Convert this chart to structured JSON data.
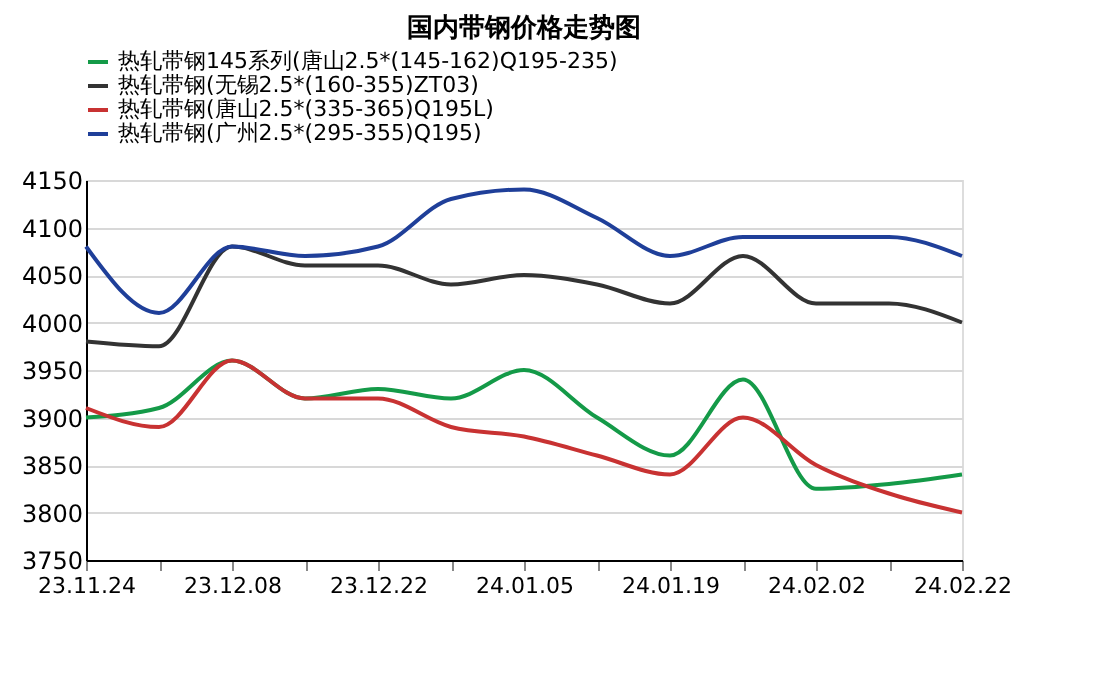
{
  "chart_data": {
    "type": "line",
    "title": "国内带钢价格走势图",
    "categories": [
      "23.11.24",
      null,
      "23.12.08",
      null,
      "23.12.22",
      null,
      "24.01.05",
      null,
      "24.01.19",
      null,
      "24.02.02",
      null,
      "24.02.22"
    ],
    "series": [
      {
        "name": "热轧带钢145系列(唐山2.5*(145-162)Q195-235)",
        "color": "#149a48",
        "values": [
          3900,
          3910,
          3960,
          3920,
          3930,
          3920,
          3950,
          3900,
          3860,
          3940,
          3825,
          3830,
          3840
        ]
      },
      {
        "name": "热轧带钢(无锡2.5*(160-355)ZT03)",
        "color": "#333333",
        "values": [
          3980,
          3975,
          4080,
          4060,
          4060,
          4040,
          4050,
          4040,
          4020,
          4070,
          4020,
          4020,
          4000
        ]
      },
      {
        "name": "热轧带钢(唐山2.5*(335-365)Q195L)",
        "color": "#c83232",
        "values": [
          3910,
          3890,
          3960,
          3920,
          3920,
          3890,
          3880,
          3860,
          3840,
          3900,
          3850,
          3820,
          3800
        ]
      },
      {
        "name": "热轧带钢(广州2.5*(295-355)Q195)",
        "color": "#1f3f99",
        "values": [
          4080,
          4010,
          4080,
          4070,
          4080,
          4130,
          4140,
          4110,
          4070,
          4090,
          4090,
          4090,
          4070
        ]
      }
    ],
    "ylim": [
      3750,
      4150
    ],
    "yticks": [
      3750,
      3800,
      3850,
      3900,
      3950,
      4000,
      4050,
      4100,
      4150
    ],
    "grid": "y",
    "legend": "top",
    "marker": "none",
    "line_style": "solid"
  }
}
